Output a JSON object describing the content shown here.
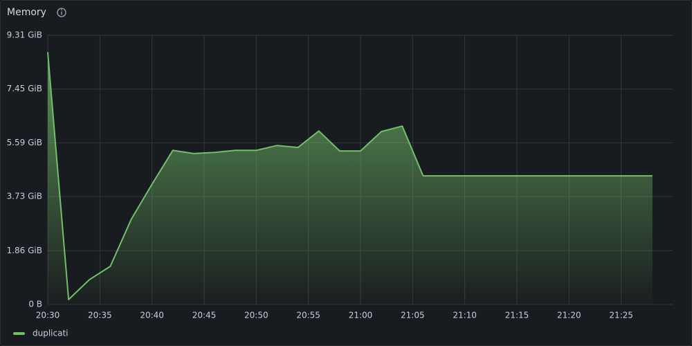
{
  "chart_data": {
    "type": "area",
    "title": "Memory",
    "x": [
      "20:30",
      "20:32",
      "20:34",
      "20:36",
      "20:38",
      "20:40",
      "20:42",
      "20:44",
      "20:46",
      "20:48",
      "20:50",
      "20:52",
      "20:54",
      "20:56",
      "20:58",
      "21:00",
      "21:02",
      "21:04",
      "21:06",
      "21:08",
      "21:10",
      "21:12",
      "21:14",
      "21:16",
      "21:18",
      "21:20",
      "21:22",
      "21:24",
      "21:26",
      "21:28"
    ],
    "xlim": [
      "20:30",
      "21:30"
    ],
    "xticks": [
      "20:30",
      "20:35",
      "20:40",
      "20:45",
      "20:50",
      "20:55",
      "21:00",
      "21:05",
      "21:10",
      "21:15",
      "21:20",
      "21:25"
    ],
    "series": [
      {
        "name": "duplicati",
        "color": "#73bf69",
        "values": [
          8.73,
          0.17,
          0.86,
          1.32,
          2.94,
          4.16,
          5.33,
          5.22,
          5.26,
          5.33,
          5.33,
          5.5,
          5.43,
          6.0,
          5.31,
          5.31,
          5.98,
          6.17,
          4.45,
          4.45,
          4.45,
          4.45,
          4.45,
          4.45,
          4.45,
          4.45,
          4.45,
          4.45,
          4.45,
          4.45
        ]
      }
    ],
    "ylim": [
      0,
      9.31
    ],
    "yticks": [
      {
        "value": 0,
        "label": "0 B"
      },
      {
        "value": 1.86,
        "label": "1.86 GiB"
      },
      {
        "value": 3.73,
        "label": "3.73 GiB"
      },
      {
        "value": 5.59,
        "label": "5.59 GiB"
      },
      {
        "value": 7.45,
        "label": "7.45 GiB"
      },
      {
        "value": 9.31,
        "label": "9.31 GiB"
      }
    ],
    "grid": true
  }
}
